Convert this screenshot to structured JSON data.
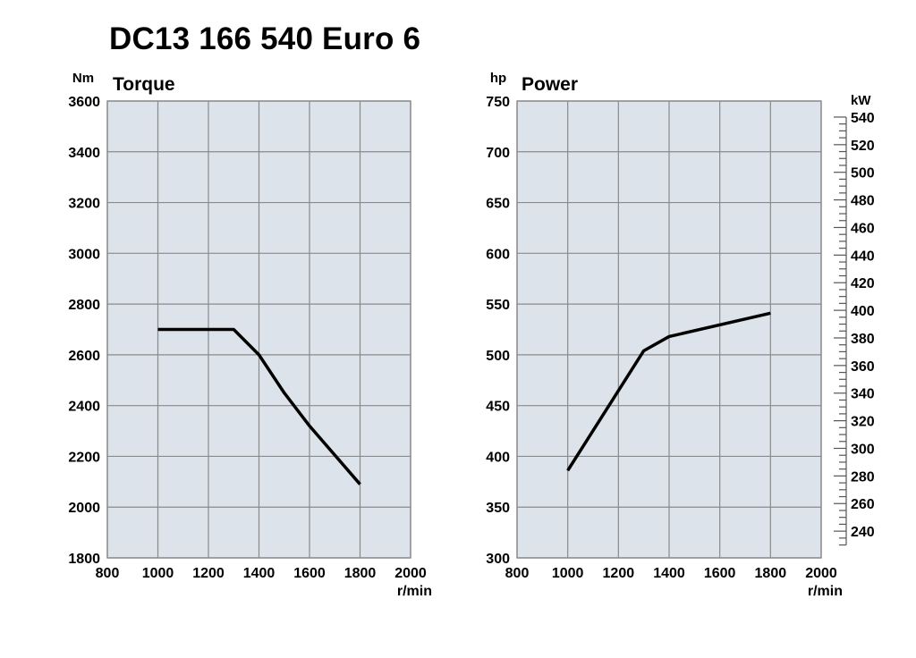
{
  "title": "DC13 166 540 Euro 6",
  "colors": {
    "plot_background": "#dde3ea",
    "grid": "#8a8a8a",
    "line": "#000000"
  },
  "chart_data": [
    {
      "type": "line",
      "title": "Torque",
      "ylabel": "Nm",
      "xlabel": "r/min",
      "xlim": [
        800,
        2000
      ],
      "ylim": [
        1800,
        3600
      ],
      "xticks": [
        "800",
        "1000",
        "1200",
        "1400",
        "1600",
        "1800",
        "2000"
      ],
      "yticks": [
        "1800",
        "2000",
        "2200",
        "2400",
        "2600",
        "2800",
        "3000",
        "3200",
        "3400",
        "3600"
      ],
      "grid": true,
      "series": [
        {
          "x": [
            1000,
            1300,
            1400,
            1500,
            1600,
            1800
          ],
          "y": [
            2700,
            2700,
            2600,
            2450,
            2320,
            2090
          ]
        }
      ]
    },
    {
      "type": "line",
      "title": "Power",
      "ylabel": "hp",
      "y2label": "kW",
      "xlabel": "r/min",
      "xlim": [
        800,
        2000
      ],
      "ylim": [
        300,
        750
      ],
      "xticks": [
        "800",
        "1000",
        "1200",
        "1400",
        "1600",
        "1800",
        "2000"
      ],
      "yticks": [
        "300",
        "350",
        "400",
        "450",
        "500",
        "550",
        "600",
        "650",
        "700",
        "750"
      ],
      "y2ticks": [
        "240",
        "260",
        "280",
        "300",
        "320",
        "340",
        "360",
        "380",
        "400",
        "420",
        "440",
        "460",
        "480",
        "500",
        "520",
        "540"
      ],
      "grid": true,
      "series": [
        {
          "x": [
            1000,
            1300,
            1400,
            1800
          ],
          "y": [
            386,
            504,
            518,
            541
          ]
        }
      ]
    }
  ]
}
